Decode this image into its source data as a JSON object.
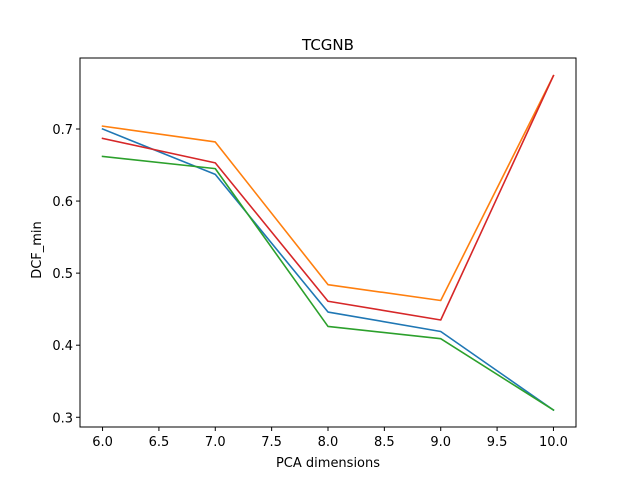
{
  "chart_data": {
    "type": "line",
    "title": "TCGNB",
    "xlabel": "PCA dimensions",
    "ylabel": "DCF_min",
    "x": [
      6,
      7,
      8,
      9,
      10
    ],
    "xlim": [
      5.8,
      10.2
    ],
    "ylim": [
      0.2865,
      0.7985
    ],
    "xticks": [
      "6.0",
      "6.5",
      "7.0",
      "7.5",
      "8.0",
      "8.5",
      "9.0",
      "9.5",
      "10.0"
    ],
    "yticks": [
      "0.3",
      "0.4",
      "0.5",
      "0.6",
      "0.7"
    ],
    "grid": false,
    "series": [
      {
        "color": "#1f77b4",
        "values": [
          0.7,
          0.637,
          0.446,
          0.419,
          0.31
        ]
      },
      {
        "color": "#ff7f0e",
        "values": [
          0.704,
          0.682,
          0.484,
          0.462,
          0.774
        ]
      },
      {
        "color": "#2ca02c",
        "values": [
          0.662,
          0.645,
          0.426,
          0.409,
          0.31
        ]
      },
      {
        "color": "#d62728",
        "values": [
          0.687,
          0.653,
          0.461,
          0.435,
          0.774
        ]
      }
    ]
  }
}
